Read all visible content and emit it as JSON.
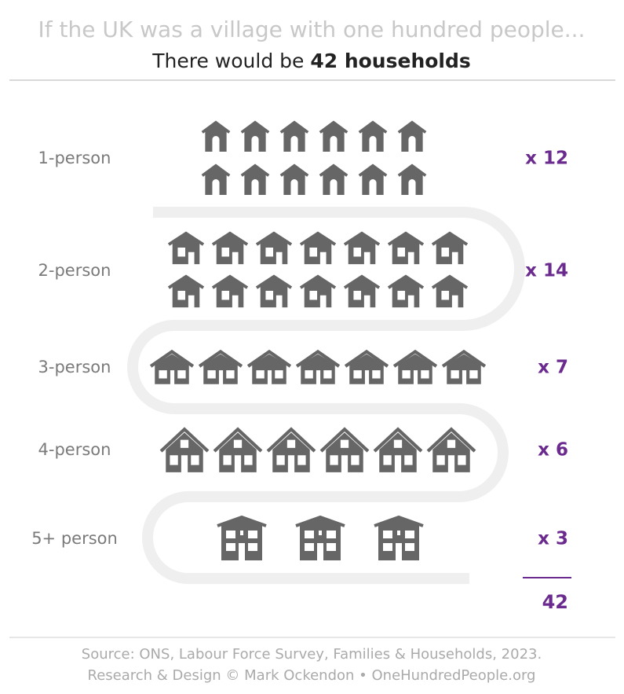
{
  "header": {
    "title": "If the UK was a village with one hundred people...",
    "subtitle_prefix": "There would be ",
    "subtitle_bold": "42 households"
  },
  "rows": [
    {
      "label": "1-person",
      "count": 12,
      "count_label": "x 12"
    },
    {
      "label": "2-person",
      "count": 14,
      "count_label": "x 14"
    },
    {
      "label": "3-person",
      "count": 7,
      "count_label": "x 7"
    },
    {
      "label": "4-person",
      "count": 6,
      "count_label": "x 6"
    },
    {
      "label": "5+ person",
      "count": 3,
      "count_label": "x 3"
    }
  ],
  "total": "42",
  "footer": {
    "source": "Source: ONS, Labour Force Survey, Families & Households, 2023.",
    "credit": "Research & Design © Mark Ockendon • OneHundredPeople.org"
  },
  "colors": {
    "icon": "#666666",
    "count": "#6a2a8e",
    "title": "#c8c8c8",
    "label": "#7a7a7a"
  }
}
